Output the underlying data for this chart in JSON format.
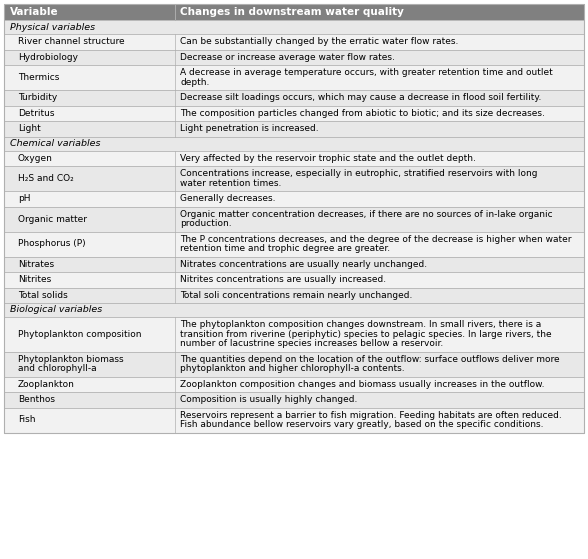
{
  "header": [
    "Variable",
    "Changes in downstream water quality"
  ],
  "header_bg": "#808080",
  "header_fg": "#ffffff",
  "section_bg": "#e8e8e8",
  "row_bg_alt1": "#f2f2f2",
  "row_bg_alt2": "#e8e8e8",
  "section_fg": "#000000",
  "row_fg": "#000000",
  "border_color": "#b0b0b0",
  "sections": [
    {
      "name": "Physical variables",
      "rows": [
        [
          "River channel structure",
          "Can be substantially changed by the erratic water flow rates."
        ],
        [
          "Hydrobiology",
          "Decrease or increase average water flow rates."
        ],
        [
          "Thermics",
          "A decrease in average temperature occurs, with greater retention time and outlet depth."
        ],
        [
          "Turbidity",
          "Decrease silt loadings occurs, which may cause a decrease in flood soil fertility."
        ],
        [
          "Detritus",
          "The composition particles changed from abiotic to biotic; and its size decreases."
        ],
        [
          "Light",
          "Light penetration is increased."
        ]
      ]
    },
    {
      "name": "Chemical variables",
      "rows": [
        [
          "Oxygen",
          "Very affected by the reservoir trophic state and the outlet depth."
        ],
        [
          "H₂S and CO₂",
          "Concentrations increase, especially in eutrophic, stratified reservoirs with long water retention times."
        ],
        [
          "pH",
          "Generally decreases."
        ],
        [
          "Organic matter",
          "Organic matter concentration decreases, if there are no sources of in-lake organic production."
        ],
        [
          "Phosphorus (P)",
          "The P concentrations decreases, and the degree of the decrease is higher when water retention time and trophic degree are greater."
        ],
        [
          "Nitrates",
          "Nitrates concentrations are usually nearly unchanged."
        ],
        [
          "Nitrites",
          "Nitrites concentrations are usually increased."
        ],
        [
          "Total solids",
          "Total soli concentrations remain nearly unchanged."
        ]
      ]
    },
    {
      "name": "Biological variables",
      "rows": [
        [
          "Phytoplankton composition",
          "The phytoplankton composition changes downstream. In small rivers, there is a transition from riverine (periphytic) species to pelagic species. In large rivers, the number of lacustrine species increases bellow a reservoir."
        ],
        [
          "Phytoplankton biomass\nand chlorophyll-a",
          "The quantities depend on the location of the outflow: surface outflows deliver more phytoplankton and higher chlorophyll-a contents."
        ],
        [
          "Zooplankton",
          "Zooplankton composition changes and biomass usually increases in the outflow."
        ],
        [
          "Benthos",
          "Composition is usually highly changed."
        ],
        [
          "Fish",
          "Reservoirs represent a barrier to fish migration. Feeding habitats are often reduced. Fish abundance bellow reservoirs vary greatly, based on the specific conditions."
        ]
      ]
    }
  ]
}
